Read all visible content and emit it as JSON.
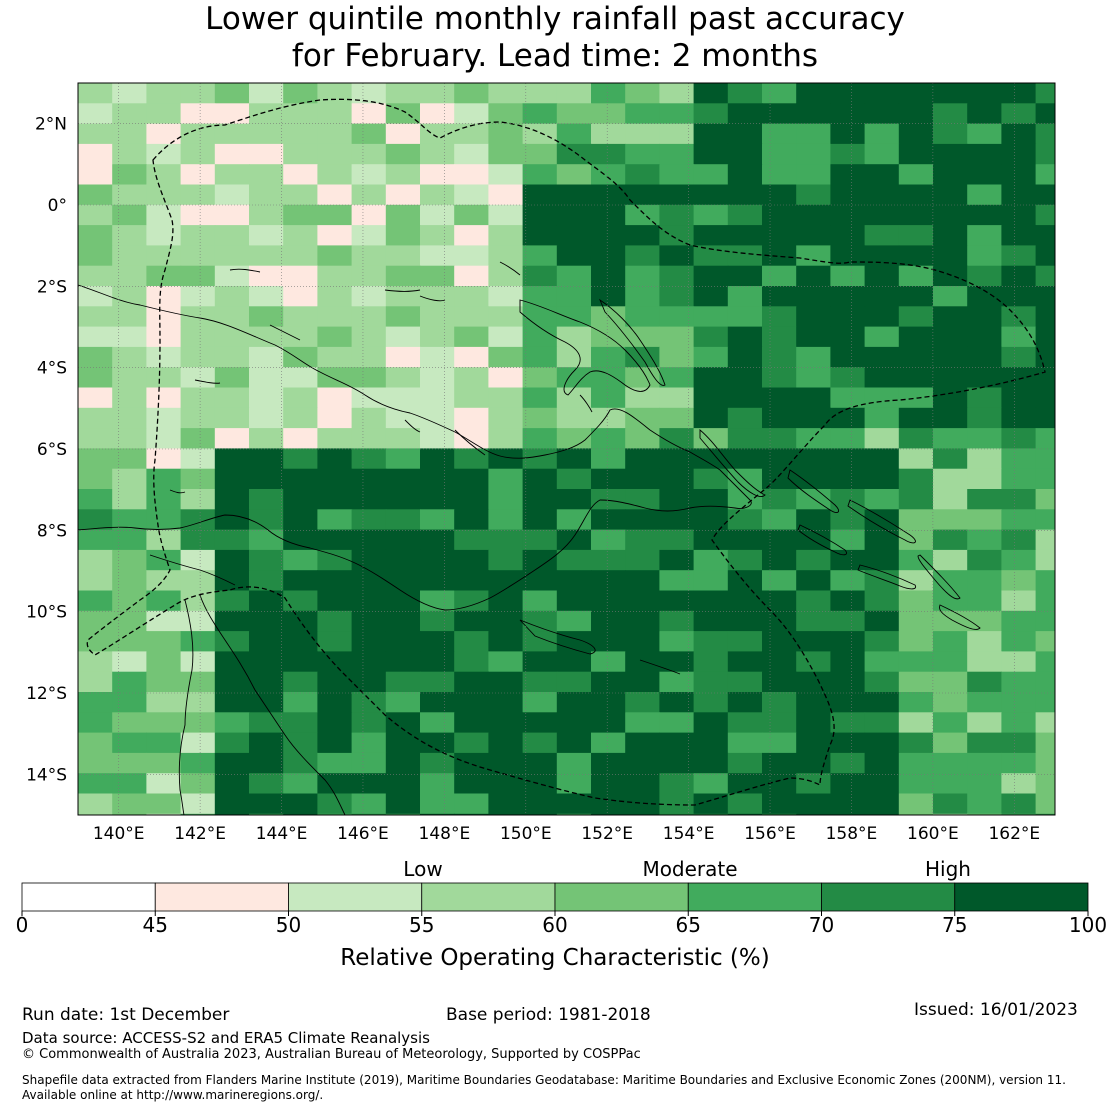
{
  "title": {
    "line1": "Lower quintile monthly rainfall past accuracy",
    "line2": "for February. Lead time: 2 months"
  },
  "map": {
    "lon_labels": [
      "140°E",
      "142°E",
      "144°E",
      "146°E",
      "148°E",
      "150°E",
      "152°E",
      "154°E",
      "156°E",
      "158°E",
      "160°E",
      "162°E"
    ],
    "lat_labels": [
      "2°N",
      "0°",
      "2°S",
      "4°S",
      "6°S",
      "8°S",
      "10°S",
      "12°S",
      "14°S"
    ],
    "lon_range": [
      139,
      163
    ],
    "lat_range": [
      -15,
      3
    ]
  },
  "colorbar": {
    "category_labels": [
      "Low",
      "Moderate",
      "High"
    ],
    "ticks": [
      "0",
      "45",
      "50",
      "55",
      "60",
      "65",
      "70",
      "75",
      "100"
    ],
    "colors": [
      "#ffffff",
      "#fee8e0",
      "#c7e9c0",
      "#a1d99b",
      "#74c476",
      "#41ab5d",
      "#238b45",
      "#00582a"
    ],
    "title": "Relative Operating Characteristic (%)"
  },
  "footer": {
    "run_date": "Run date: 1st December",
    "base_period": "Base period: 1981-2018",
    "issued": "Issued: 16/01/2023",
    "data_source": "Data source: ACCESS-S2 and ERA5 Climate Reanalysis",
    "copyright": "© Commonwealth of Australia 2023, Australian Bureau of Meteorology, Supported by COSPPac",
    "shapefile1": "Shapefile data extracted from Flanders Marine Institute (2019), Maritime Boundaries Geodatabase: Maritime Boundaries and Exclusive Economic Zones (200NM), version 11.",
    "shapefile2": "Available online at http://www.marineregions.org/."
  }
}
